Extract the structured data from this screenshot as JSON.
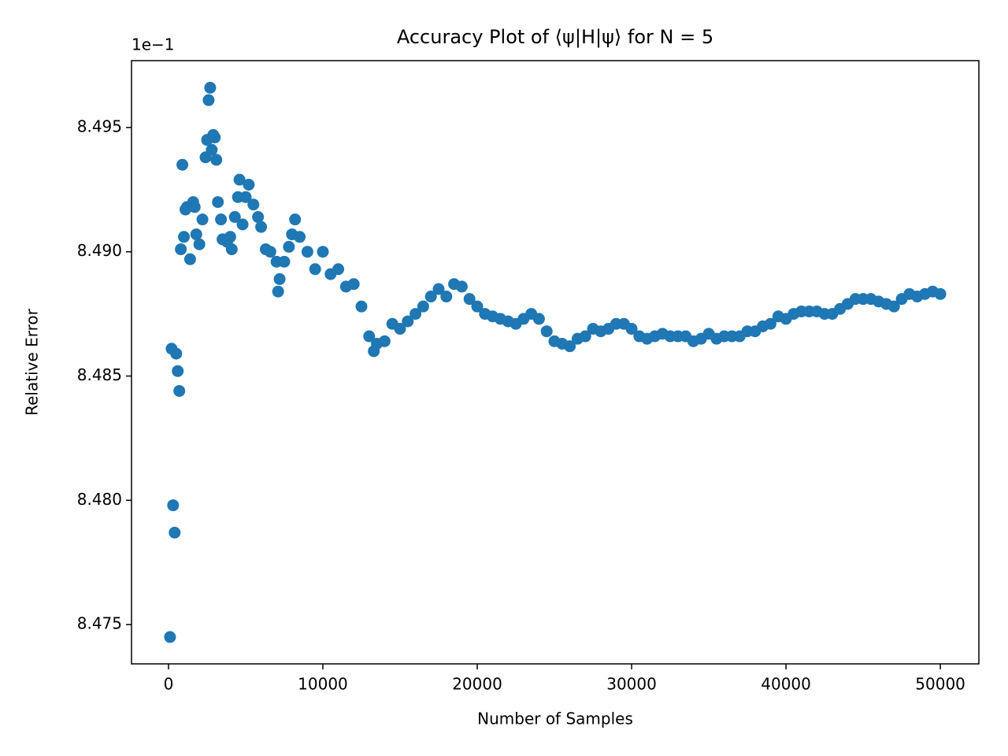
{
  "chart_data": {
    "type": "scatter",
    "title": "Accuracy Plot of ⟨ψ|H|ψ⟩ for N = 5",
    "x_label": "Number of Samples",
    "y_label": "Relative Error",
    "y_offset_label": "1e−1",
    "color": "#1f77b4",
    "xlim": [
      -2395,
      52495
    ],
    "ylim": [
      8.47342,
      8.49769
    ],
    "xticks": [
      0,
      10000,
      20000,
      30000,
      40000,
      50000
    ],
    "yticks": [
      8.475,
      {
        "value": 8.48,
        "label": "8.480"
      },
      8.485,
      {
        "value": 8.49,
        "label": "8.490"
      },
      8.495
    ],
    "x": [
      100,
      200,
      300,
      400,
      500,
      600,
      700,
      800,
      900,
      1000,
      1100,
      1200,
      1400,
      1600,
      1700,
      1800,
      2000,
      2200,
      2400,
      2500,
      2600,
      2700,
      2800,
      2900,
      3000,
      3100,
      3200,
      3400,
      3500,
      3800,
      4000,
      4100,
      4300,
      4500,
      4600,
      4800,
      5000,
      5200,
      5500,
      5800,
      6000,
      6300,
      6600,
      7000,
      7100,
      7200,
      7500,
      7800,
      8000,
      8200,
      8500,
      9000,
      9500,
      10000,
      10500,
      11000,
      11500,
      12000,
      12500,
      13000,
      13300,
      13500,
      14000,
      14500,
      15000,
      15500,
      16000,
      16500,
      17000,
      17500,
      18000,
      18500,
      19000,
      19500,
      20000,
      20500,
      21000,
      21500,
      22000,
      22500,
      23000,
      23500,
      24000,
      24500,
      25000,
      25500,
      26000,
      26500,
      27000,
      27500,
      28000,
      28500,
      29000,
      29500,
      30000,
      30500,
      31000,
      31500,
      32000,
      32500,
      33000,
      33500,
      34000,
      34500,
      35000,
      35500,
      36000,
      36500,
      37000,
      37500,
      38000,
      38500,
      39000,
      39500,
      40000,
      40500,
      41000,
      41500,
      42000,
      42500,
      43000,
      43500,
      44000,
      44500,
      45000,
      45500,
      46000,
      46500,
      47000,
      47500,
      48000,
      48500,
      49000,
      49500,
      50000
    ],
    "values": [
      8.4745,
      8.4861,
      8.4798,
      8.4787,
      8.4859,
      8.4852,
      8.4844,
      8.4901,
      8.4935,
      8.4906,
      8.4917,
      8.4918,
      8.4897,
      8.492,
      8.4918,
      8.4907,
      8.4903,
      8.4913,
      8.4938,
      8.4945,
      8.4961,
      8.4966,
      8.4941,
      8.4947,
      8.4946,
      8.4937,
      8.492,
      8.4913,
      8.4905,
      8.4904,
      8.4906,
      8.4901,
      8.4914,
      8.4922,
      8.4929,
      8.4911,
      8.4922,
      8.4927,
      8.4919,
      8.4914,
      8.491,
      8.4901,
      8.49,
      8.4896,
      8.4884,
      8.4889,
      8.4896,
      8.4902,
      8.4907,
      8.4913,
      8.4906,
      8.49,
      8.4893,
      8.49,
      8.4891,
      8.4893,
      8.4886,
      8.4887,
      8.4878,
      8.4866,
      8.486,
      8.4863,
      8.4864,
      8.4871,
      8.4869,
      8.4872,
      8.4875,
      8.4878,
      8.4882,
      8.4885,
      8.4882,
      8.4887,
      8.4886,
      8.4881,
      8.4878,
      8.4875,
      8.4874,
      8.4873,
      8.4872,
      8.4871,
      8.4873,
      8.4875,
      8.4873,
      8.4868,
      8.4864,
      8.4863,
      8.4862,
      8.4865,
      8.4866,
      8.4869,
      8.4868,
      8.4869,
      8.4871,
      8.4871,
      8.4869,
      8.4866,
      8.4865,
      8.4866,
      8.4867,
      8.4866,
      8.4866,
      8.4866,
      8.4864,
      8.4865,
      8.4867,
      8.4865,
      8.4866,
      8.4866,
      8.4866,
      8.4868,
      8.4868,
      8.487,
      8.4871,
      8.4874,
      8.4873,
      8.4875,
      8.4876,
      8.4876,
      8.4876,
      8.4875,
      8.4875,
      8.4877,
      8.4879,
      8.4881,
      8.4881,
      8.4881,
      8.488,
      8.4879,
      8.4878,
      8.4881,
      8.4883,
      8.4882,
      8.4883,
      8.4884,
      8.4883
    ]
  }
}
